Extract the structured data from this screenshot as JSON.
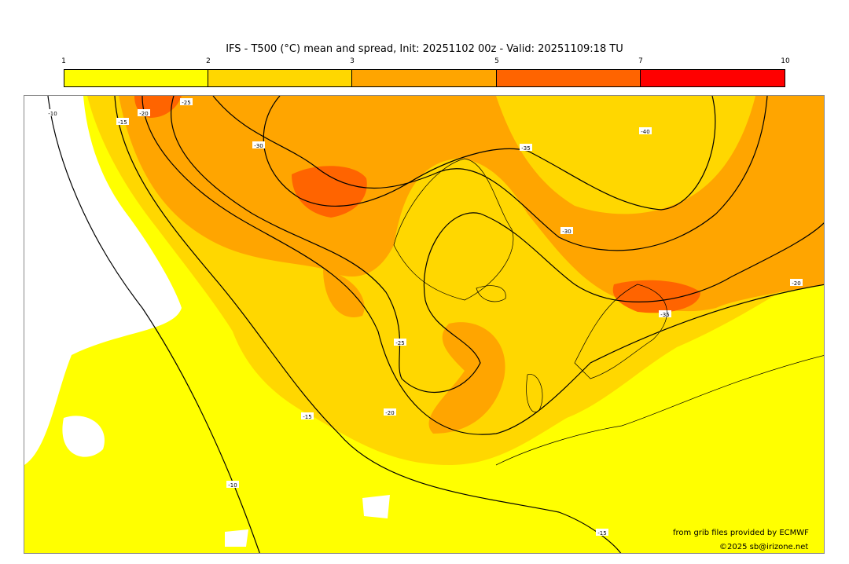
{
  "title": "IFS - T500 (°C) mean and spread, Init: 20251102 00z - Valid: 20251109:18 TU",
  "colorbar": {
    "ticks": [
      "1",
      "2",
      "3",
      "5",
      "7",
      "10"
    ],
    "bins": [
      {
        "from": 1,
        "to": 2,
        "color": "#ffff00"
      },
      {
        "from": 2,
        "to": 3,
        "color": "#ffd700"
      },
      {
        "from": 3,
        "to": 5,
        "color": "#ffa500"
      },
      {
        "from": 5,
        "to": 7,
        "color": "#ff6400"
      },
      {
        "from": 7,
        "to": 10,
        "color": "#ff0000"
      }
    ]
  },
  "map": {
    "colors": {
      "low": "#ffffff",
      "c1": "#ffff00",
      "c2": "#ffd700",
      "c3": "#ffa500",
      "c4": "#ff6400"
    },
    "contour_labels": [
      "-10",
      "-15",
      "-20",
      "-25",
      "-30",
      "-35",
      "-40",
      "-15",
      "-20",
      "-25",
      "-30",
      "-35",
      "-20",
      "-15",
      "-10"
    ]
  },
  "credits": {
    "source": "from grib files provided by ECMWF",
    "copyright": "©2025 sb@irizone.net"
  }
}
